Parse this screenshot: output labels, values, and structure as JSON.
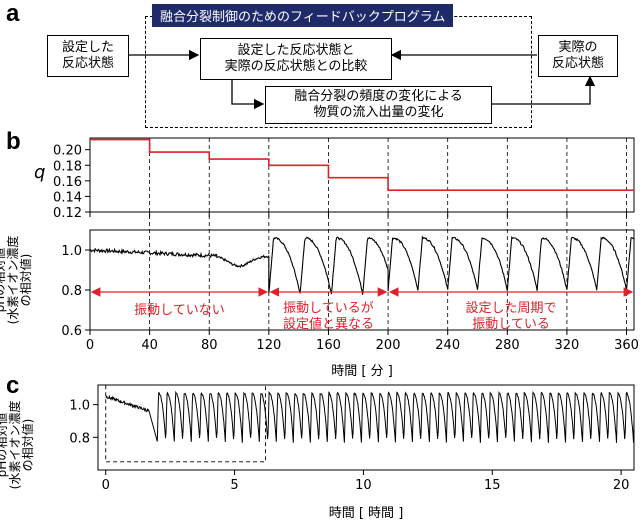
{
  "panel_a": {
    "label": "a",
    "title": "融合分裂制御のためのフィードバックプログラム",
    "box_setpoint": [
      "設定した",
      "反応状態"
    ],
    "box_compare": [
      "設定した反応状態と",
      "実際の反応状態との比較"
    ],
    "box_actual": [
      "実際の",
      "反応状態"
    ],
    "box_change": [
      "融合分裂の頻度の変化による",
      "物質の流入出量の変化"
    ],
    "colors": {
      "title_bg": "#1f2a6b",
      "title_fg": "#ffffff"
    }
  },
  "panel_b": {
    "label": "b"
  },
  "panel_c": {
    "label": "c"
  },
  "chart_data": [
    {
      "id": "b-top",
      "type": "line",
      "ylabel": "q",
      "x_range": [
        0,
        365
      ],
      "ylim": [
        0.12,
        0.215
      ],
      "y_ticks": [
        "0.20",
        "0.18",
        "0.16",
        "0.14",
        "0.12"
      ],
      "y_tick_values": [
        0.2,
        0.18,
        0.16,
        0.14,
        0.12
      ],
      "series": [
        {
          "color": "#e0202a",
          "steps": [
            {
              "x0": 0,
              "x1": 40,
              "y": 0.213
            },
            {
              "x0": 40,
              "x1": 80,
              "y": 0.197
            },
            {
              "x0": 80,
              "x1": 120,
              "y": 0.188
            },
            {
              "x0": 120,
              "x1": 160,
              "y": 0.18
            },
            {
              "x0": 160,
              "x1": 200,
              "y": 0.164
            },
            {
              "x0": 200,
              "x1": 365,
              "y": 0.148
            }
          ]
        }
      ],
      "dashed_vlines": [
        40,
        80,
        120,
        160,
        200,
        240,
        280,
        320,
        360
      ]
    },
    {
      "id": "b-bottom",
      "type": "line",
      "ylabel": [
        "pHの相対値",
        "(水素イオン濃度",
        "の相対値)"
      ],
      "xlabel": "時間 [ 分 ]",
      "x_range": [
        0,
        365
      ],
      "ylim": [
        0.6,
        1.1
      ],
      "x_ticks": [
        "0",
        "40",
        "80",
        "120",
        "160",
        "200",
        "240",
        "280",
        "320",
        "360"
      ],
      "x_tick_values": [
        0,
        40,
        80,
        120,
        160,
        200,
        240,
        280,
        320,
        360
      ],
      "y_ticks": [
        "1.0",
        "0.8",
        "0.6"
      ],
      "y_tick_values": [
        1.0,
        0.8,
        0.6
      ],
      "series": [
        {
          "color": "#000000",
          "segments": [
            {
              "kind": "noisy",
              "x0": 0,
              "x1": 85,
              "y0": 1.0,
              "y1": 0.97
            },
            {
              "kind": "dip",
              "x0": 85,
              "x1": 120,
              "center": 100,
              "depth": 0.05,
              "base": 0.97
            },
            {
              "kind": "osc",
              "x0": 120,
              "x1": 200,
              "period": 21,
              "high": 1.06,
              "low": 0.78
            },
            {
              "kind": "osc",
              "x0": 200,
              "x1": 365,
              "period": 20,
              "high": 1.06,
              "low": 0.8
            }
          ]
        }
      ],
      "annotations": [
        {
          "text": [
            "振動していない"
          ],
          "x_from": 0,
          "x_to": 120,
          "y": 0.79
        },
        {
          "text": [
            "振動しているが",
            "設定値と異なる"
          ],
          "x_from": 120,
          "x_to": 200,
          "y": 0.79
        },
        {
          "text": [
            "設定した周期で",
            "振動している"
          ],
          "x_from": 200,
          "x_to": 365,
          "y": 0.79
        }
      ],
      "annotation_color": "#e0202a",
      "dashed_vlines": [
        40,
        80,
        120,
        160,
        200,
        240,
        280,
        320,
        360
      ]
    },
    {
      "id": "c",
      "type": "line",
      "ylabel": [
        "pHの相対値",
        "(水素イオン濃度",
        "の相対値)"
      ],
      "xlabel": "時間 [ 時間 ]",
      "x_range": [
        -0.3,
        20.5
      ],
      "ylim": [
        0.6,
        1.12
      ],
      "x_ticks": [
        "0",
        "5",
        "10",
        "15",
        "20"
      ],
      "x_tick_values": [
        0,
        5,
        10,
        15,
        20
      ],
      "y_ticks": [
        "1.0",
        "0.8"
      ],
      "y_tick_values": [
        1.0,
        0.8
      ],
      "series": [
        {
          "color": "#000000",
          "segments": [
            {
              "kind": "noisy",
              "x0": 0,
              "x1": 1.7,
              "y0": 1.05,
              "y1": 0.96
            },
            {
              "kind": "osc",
              "x0": 2.0,
              "x1": 20.5,
              "period": 0.33,
              "high": 1.07,
              "low": 0.77
            }
          ]
        }
      ],
      "inset_box": {
        "x0": 0,
        "x1": 6.2,
        "y0": 0.65,
        "y1": 1.12
      }
    }
  ]
}
